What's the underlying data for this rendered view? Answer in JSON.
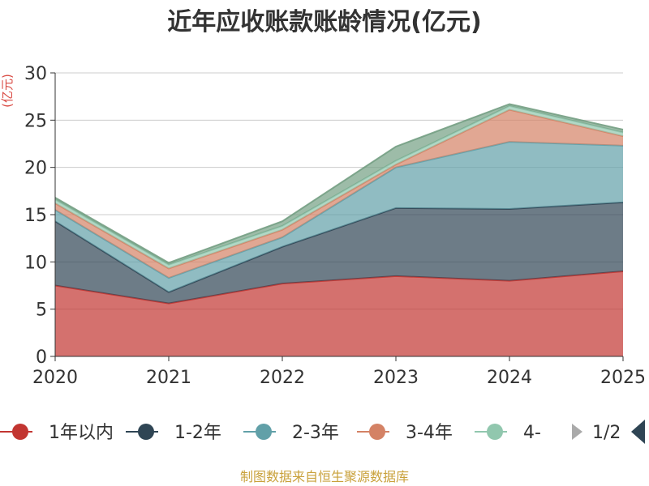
{
  "chart_data": {
    "type": "area",
    "title": "近年应收账款账龄情况(亿元)",
    "unit_label": "(亿元)",
    "x": [
      "2020",
      "2021",
      "2022",
      "2023",
      "2024",
      "2025"
    ],
    "ylim": [
      0,
      30
    ],
    "y_ticks": [
      "0",
      "5",
      "10",
      "15",
      "20",
      "25",
      "30"
    ],
    "grid": true,
    "stacked": true,
    "legend_position": "bottom",
    "series": [
      {
        "name": "1年以内",
        "color": "#c23531",
        "values": [
          7.5,
          5.6,
          7.7,
          8.5,
          8.0,
          9.0
        ]
      },
      {
        "name": "1-2年",
        "color": "#2f4554",
        "values": [
          6.8,
          1.2,
          3.9,
          7.2,
          7.6,
          7.3
        ]
      },
      {
        "name": "2-3年",
        "color": "#61a0a8",
        "values": [
          1.2,
          1.5,
          1.0,
          4.3,
          7.1,
          6.0
        ]
      },
      {
        "name": "3-4年",
        "color": "#d48265",
        "values": [
          0.7,
          1.0,
          0.8,
          0.3,
          3.4,
          1.0
        ]
      },
      {
        "name": "4-",
        "color": "#91c7ae",
        "values": [
          0.4,
          0.4,
          0.4,
          0.4,
          0.4,
          0.4
        ]
      },
      {
        "name": "",
        "color": "#749f83",
        "values": [
          0.2,
          0.2,
          0.5,
          1.5,
          0.2,
          0.3
        ]
      }
    ],
    "legend": {
      "visible_entries": [
        "1年以内",
        "1-2年",
        "2-3年",
        "3-4年",
        "4-"
      ],
      "page_indicator": "1/2"
    }
  },
  "footer": "制图数据来自恒生聚源数据库",
  "icons": {
    "prev": "chevron-left-icon",
    "next": "chevron-right-icon"
  }
}
